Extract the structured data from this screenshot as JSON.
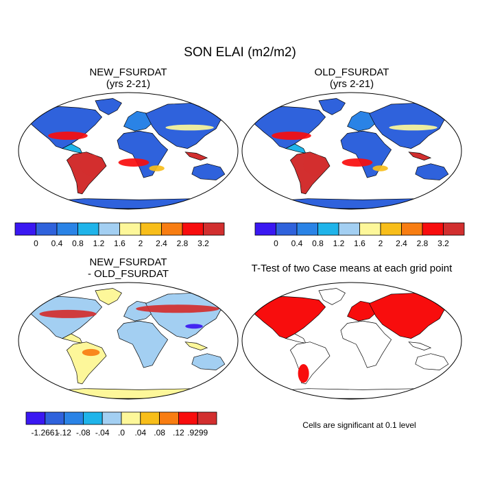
{
  "figure": {
    "title": "SON ELAI (m2/m2)",
    "footnote": "Cells are significant at 0.1 level"
  },
  "chart_data": [
    {
      "type": "heatmap",
      "title_line1": "NEW_FSURDAT",
      "title_line2": "(yrs 2-21)",
      "colorbar": {
        "colors": [
          "#3a18f2",
          "#2f62dc",
          "#2a83e6",
          "#1fb4ea",
          "#a3cff2",
          "#fdf79a",
          "#f8be1a",
          "#f87d12",
          "#f80d0d",
          "#d22f2f"
        ],
        "tick_labels": [
          "0",
          "0.4",
          "0.8",
          "1.2",
          "1.6",
          "2",
          "2.4",
          "2.8",
          "3.2"
        ]
      },
      "background_value_color": "#2f62dc",
      "highlight_color": "#d22f2f"
    },
    {
      "type": "heatmap",
      "title_line1": "OLD_FSURDAT",
      "title_line2": "(yrs 2-21)",
      "colorbar": {
        "colors": [
          "#3a18f2",
          "#2f62dc",
          "#2a83e6",
          "#1fb4ea",
          "#a3cff2",
          "#fdf79a",
          "#f8be1a",
          "#f87d12",
          "#f80d0d",
          "#d22f2f"
        ],
        "tick_labels": [
          "0",
          "0.4",
          "0.8",
          "1.2",
          "1.6",
          "2",
          "2.4",
          "2.8",
          "3.2"
        ]
      },
      "background_value_color": "#2f62dc",
      "highlight_color": "#d22f2f"
    },
    {
      "type": "heatmap",
      "title_line1": "NEW_FSURDAT",
      "title_line2": "- OLD_FSURDAT",
      "colorbar": {
        "colors": [
          "#3a18f2",
          "#2f62dc",
          "#2a83e6",
          "#1fb4ea",
          "#a3cff2",
          "#fdf79a",
          "#f8be1a",
          "#f87d12",
          "#f80d0d",
          "#d22f2f"
        ],
        "tick_labels": [
          "-1.2661",
          "-.12",
          "-.08",
          "-.04",
          ".0",
          ".04",
          ".08",
          ".12",
          ".9299"
        ]
      },
      "background_value_color": "#fdf79a",
      "highlight_color": "#d22f2f"
    },
    {
      "type": "heatmap",
      "title_line1": "T-Test of two Case means at each grid point",
      "significant_color": "#f80d0d"
    }
  ]
}
